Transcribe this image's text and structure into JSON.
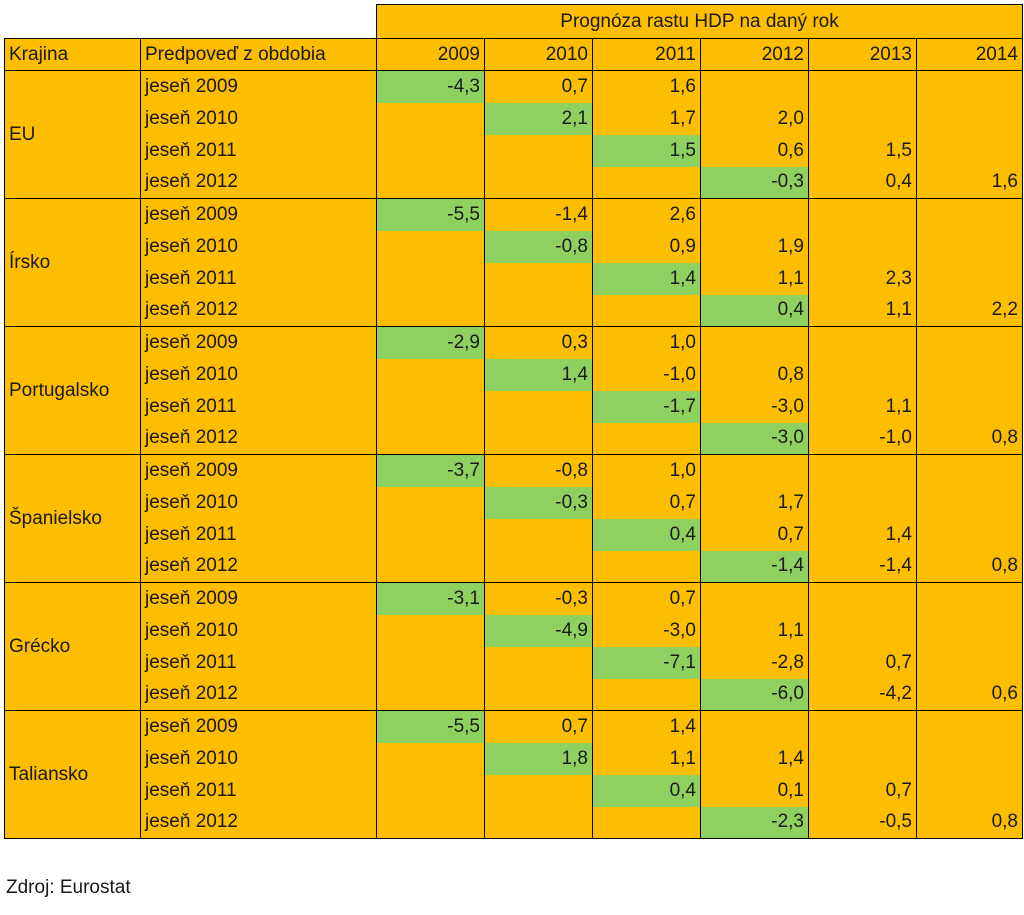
{
  "table": {
    "title": "Prognóza rastu HDP na daný rok",
    "col_country": "Krajina",
    "col_period": "Predpoveď z obdobia",
    "years": [
      "2009",
      "2010",
      "2011",
      "2012",
      "2013",
      "2014"
    ]
  },
  "chart_data": {
    "type": "table",
    "title": "Prognóza rastu HDP na daný rok",
    "columns": [
      "Krajina",
      "Predpoveď z obdobia",
      "2009",
      "2010",
      "2011",
      "2012",
      "2013",
      "2014"
    ],
    "groups": [
      {
        "country": "EU",
        "rows": [
          {
            "period": "jeseň 2009",
            "values": [
              "-4,3",
              "0,7",
              "1,6",
              "",
              "",
              ""
            ],
            "highlight": 0
          },
          {
            "period": "jeseň 2010",
            "values": [
              "",
              "2,1",
              "1,7",
              "2,0",
              "",
              ""
            ],
            "highlight": 1
          },
          {
            "period": "jeseň 2011",
            "values": [
              "",
              "",
              "1,5",
              "0,6",
              "1,5",
              ""
            ],
            "highlight": 2
          },
          {
            "period": "jeseň 2012",
            "values": [
              "",
              "",
              "",
              "-0,3",
              "0,4",
              "1,6"
            ],
            "highlight": 3
          }
        ]
      },
      {
        "country": "Írsko",
        "rows": [
          {
            "period": "jeseň 2009",
            "values": [
              "-5,5",
              "-1,4",
              "2,6",
              "",
              "",
              ""
            ],
            "highlight": 0
          },
          {
            "period": "jeseň 2010",
            "values": [
              "",
              "-0,8",
              "0,9",
              "1,9",
              "",
              ""
            ],
            "highlight": 1
          },
          {
            "period": "jeseň 2011",
            "values": [
              "",
              "",
              "1,4",
              "1,1",
              "2,3",
              ""
            ],
            "highlight": 2
          },
          {
            "period": "jeseň 2012",
            "values": [
              "",
              "",
              "",
              "0,4",
              "1,1",
              "2,2"
            ],
            "highlight": 3
          }
        ]
      },
      {
        "country": "Portugalsko",
        "rows": [
          {
            "period": "jeseň 2009",
            "values": [
              "-2,9",
              "0,3",
              "1,0",
              "",
              "",
              ""
            ],
            "highlight": 0
          },
          {
            "period": "jeseň 2010",
            "values": [
              "",
              "1,4",
              "-1,0",
              "0,8",
              "",
              ""
            ],
            "highlight": 1
          },
          {
            "period": "jeseň 2011",
            "values": [
              "",
              "",
              "-1,7",
              "-3,0",
              "1,1",
              ""
            ],
            "highlight": 2
          },
          {
            "period": "jeseň 2012",
            "values": [
              "",
              "",
              "",
              "-3,0",
              "-1,0",
              "0,8"
            ],
            "highlight": 3
          }
        ]
      },
      {
        "country": "Španielsko",
        "rows": [
          {
            "period": "jeseň 2009",
            "values": [
              "-3,7",
              "-0,8",
              "1,0",
              "",
              "",
              ""
            ],
            "highlight": 0
          },
          {
            "period": "jeseň 2010",
            "values": [
              "",
              "-0,3",
              "0,7",
              "1,7",
              "",
              ""
            ],
            "highlight": 1
          },
          {
            "period": "jeseň 2011",
            "values": [
              "",
              "",
              "0,4",
              "0,7",
              "1,4",
              ""
            ],
            "highlight": 2
          },
          {
            "period": "jeseň 2012",
            "values": [
              "",
              "",
              "",
              "-1,4",
              "-1,4",
              "0,8"
            ],
            "highlight": 3
          }
        ]
      },
      {
        "country": "Grécko",
        "rows": [
          {
            "period": "jeseň 2009",
            "values": [
              "-3,1",
              "-0,3",
              "0,7",
              "",
              "",
              ""
            ],
            "highlight": 0
          },
          {
            "period": "jeseň 2010",
            "values": [
              "",
              "-4,9",
              "-3,0",
              "1,1",
              "",
              ""
            ],
            "highlight": 1
          },
          {
            "period": "jeseň 2011",
            "values": [
              "",
              "",
              "-7,1",
              "-2,8",
              "0,7",
              ""
            ],
            "highlight": 2
          },
          {
            "period": "jeseň 2012",
            "values": [
              "",
              "",
              "",
              "-6,0",
              "-4,2",
              "0,6"
            ],
            "highlight": 3
          }
        ]
      },
      {
        "country": "Taliansko",
        "rows": [
          {
            "period": "jeseň 2009",
            "values": [
              "-5,5",
              "0,7",
              "1,4",
              "",
              "",
              ""
            ],
            "highlight": 0
          },
          {
            "period": "jeseň 2010",
            "values": [
              "",
              "1,8",
              "1,1",
              "1,4",
              "",
              ""
            ],
            "highlight": 1
          },
          {
            "period": "jeseň 2011",
            "values": [
              "",
              "",
              "0,4",
              "0,1",
              "0,7",
              ""
            ],
            "highlight": 2
          },
          {
            "period": "jeseň 2012",
            "values": [
              "",
              "",
              "",
              "-2,3",
              "-0,5",
              "0,8"
            ],
            "highlight": 3
          }
        ]
      }
    ]
  },
  "colors": {
    "cell": "#fdbd00",
    "highlight": "#8fd160",
    "border": "#000000"
  },
  "source": "Zdroj: Eurostat"
}
